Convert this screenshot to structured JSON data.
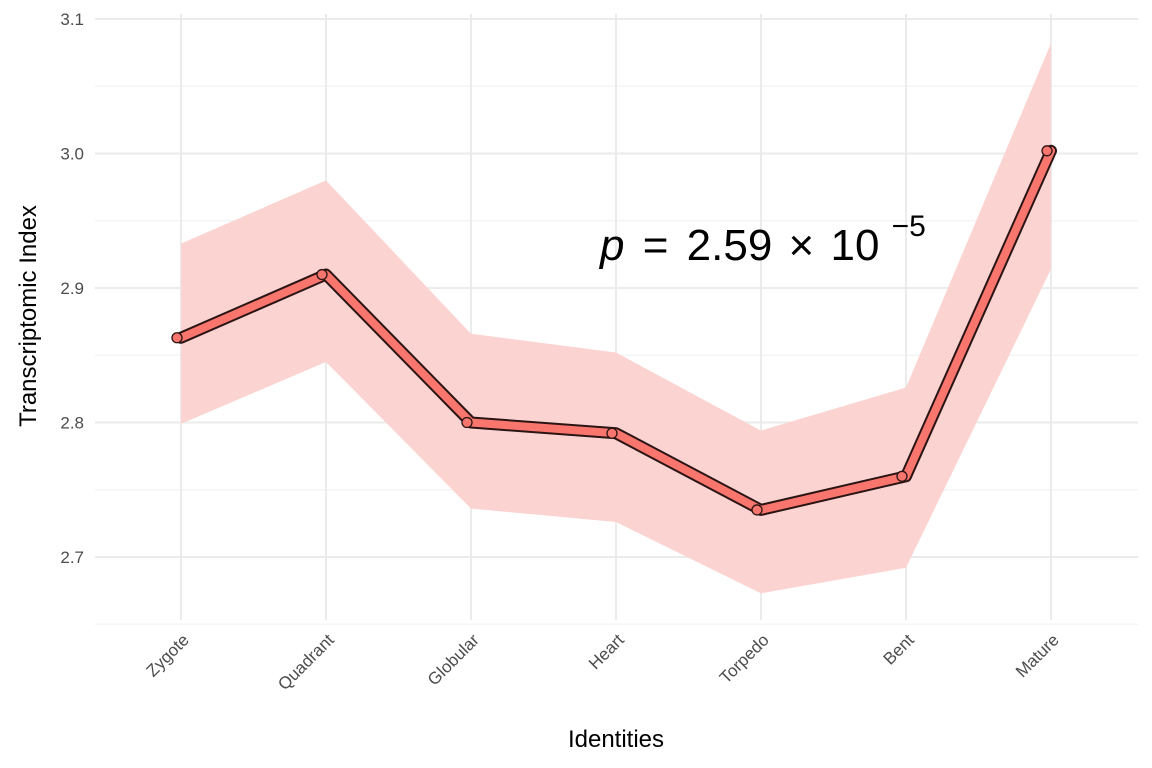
{
  "chart_data": {
    "type": "line",
    "title": "",
    "xlabel": "Identities",
    "ylabel": "Transcriptomic Index",
    "categories": [
      "Zygote",
      "Quadrant",
      "Globular",
      "Heart",
      "Torpedo",
      "Bent",
      "Mature"
    ],
    "series": [
      {
        "values": [
          2.863,
          2.91,
          2.8,
          2.792,
          2.735,
          2.76,
          3.002
        ],
        "lower": [
          2.799,
          2.845,
          2.736,
          2.726,
          2.673,
          2.692,
          2.914
        ],
        "upper": [
          2.933,
          2.98,
          2.866,
          2.852,
          2.794,
          2.826,
          3.082
        ],
        "color": "#f8766d",
        "band_color": "#fbd4d2"
      }
    ],
    "ylim": [
      2.65,
      3.1
    ],
    "yticks": [
      2.7,
      2.8,
      2.9,
      3.0,
      3.1
    ],
    "ytick_labels": [
      "2.7",
      "2.8",
      "2.9",
      "3.0",
      "3.1"
    ],
    "grid": true,
    "annotation": {
      "p_symbol": "p",
      "equals": "=",
      "mantissa": "2.59",
      "times": "×",
      "base": "10",
      "exponent": "−5"
    }
  }
}
